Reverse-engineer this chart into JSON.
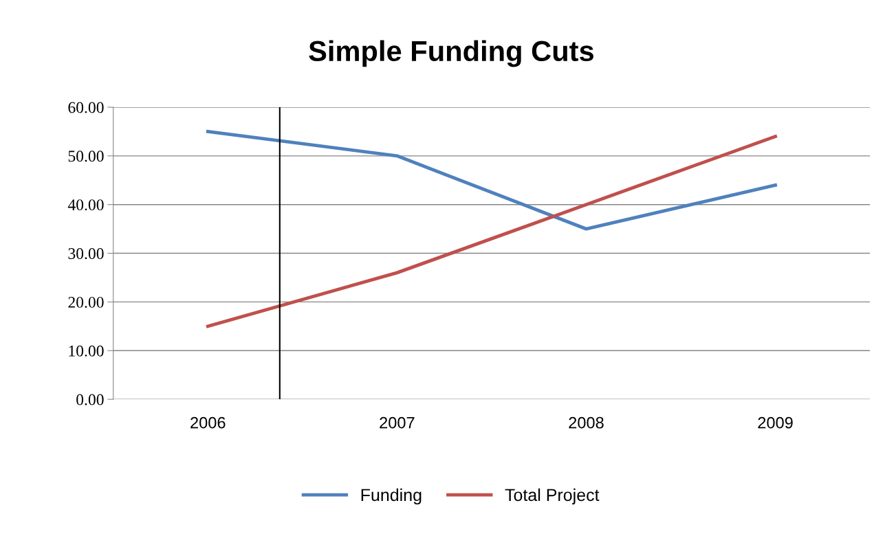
{
  "chart_data": {
    "type": "line",
    "title": "Simple Funding Cuts",
    "x": [
      2006,
      2007,
      2008,
      2009
    ],
    "series": [
      {
        "name": "Funding",
        "color": "#4f81bd",
        "values": [
          55,
          50,
          35,
          44
        ]
      },
      {
        "name": "Total Project",
        "color": "#c0504d",
        "values": [
          15,
          26,
          40,
          54
        ]
      }
    ],
    "xlim": [
      2005.5,
      2009.5
    ],
    "xticks": [
      2006,
      2007,
      2008,
      2009
    ],
    "ylim": [
      0,
      60
    ],
    "yticks": [
      {
        "value": 0,
        "label": "0.00"
      },
      {
        "value": 10,
        "label": "10.00"
      },
      {
        "value": 20,
        "label": "20.00"
      },
      {
        "value": 30,
        "label": "30.00"
      },
      {
        "value": 40,
        "label": "40.00"
      },
      {
        "value": 50,
        "label": "50.00"
      },
      {
        "value": 60,
        "label": "60.00"
      }
    ],
    "ref_lines": [
      {
        "axis": "x",
        "value": 2006.38,
        "color": "#000000"
      }
    ],
    "grid": "y",
    "legend": "bottom",
    "marker": "none",
    "line_style": "solid"
  }
}
